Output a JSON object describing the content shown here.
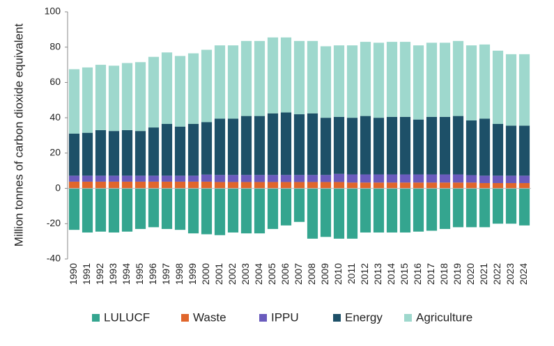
{
  "chart_data": {
    "type": "stacked-bar",
    "y_label": "Million tonnes of carbon dioxide equivalent",
    "categories": [
      "1990",
      "1991",
      "1992",
      "1993",
      "1994",
      "1995",
      "1996",
      "1997",
      "1998",
      "1999",
      "2000",
      "2001",
      "2002",
      "2003",
      "2004",
      "2005",
      "2006",
      "2007",
      "2008",
      "2009",
      "2010",
      "2011",
      "2012",
      "2013",
      "2014",
      "2015",
      "2016",
      "2017",
      "2018",
      "2019",
      "2020",
      "2021",
      "2022",
      "2023",
      "2024"
    ],
    "series": [
      {
        "name": "LULUCF",
        "color": "#34a58f",
        "values": [
          -23.5,
          -25,
          -24.5,
          -25,
          -24.5,
          -23,
          -22,
          -23,
          -23.5,
          -25.5,
          -26,
          -26.5,
          -25,
          -25.5,
          -25.5,
          -23,
          -21,
          -19,
          -28.5,
          -27.5,
          -28.5,
          -28.5,
          -25,
          -25,
          -25,
          -25,
          -24.5,
          -24,
          -23,
          -22,
          -22,
          -22,
          -20,
          -20,
          -21
        ]
      },
      {
        "name": "Waste",
        "color": "#e0662c",
        "values": [
          3.8,
          3.8,
          3.8,
          3.8,
          3.8,
          3.8,
          3.8,
          3.8,
          3.8,
          3.8,
          3.8,
          3.6,
          3.6,
          3.6,
          3.6,
          3.6,
          3.6,
          3.6,
          3.6,
          3.6,
          3.6,
          3.3,
          3.3,
          3.3,
          3.3,
          3.3,
          3.3,
          3.3,
          3.3,
          3.3,
          3.3,
          3.0,
          3.0,
          3.0,
          3.0
        ]
      },
      {
        "name": "IPPU",
        "color": "#6a5bbd",
        "values": [
          3.4,
          3.4,
          3.4,
          3.4,
          3.4,
          3.4,
          3.4,
          3.4,
          3.4,
          3.4,
          4.0,
          4.0,
          4.0,
          4.0,
          4.0,
          4.0,
          4.0,
          4.0,
          4.0,
          4.0,
          4.6,
          4.6,
          4.6,
          4.6,
          4.6,
          4.6,
          4.6,
          4.6,
          4.6,
          4.6,
          4.2,
          4.2,
          4.2,
          4.2,
          4.2
        ]
      },
      {
        "name": "Energy",
        "color": "#1d5068",
        "values": [
          23.8,
          24.3,
          25.8,
          25.3,
          25.8,
          25.3,
          27.3,
          29.3,
          27.8,
          29.3,
          29.7,
          31.9,
          31.9,
          33.4,
          33.4,
          34.9,
          35.4,
          34.4,
          34.9,
          32.4,
          32.3,
          32.1,
          33.1,
          32.1,
          32.6,
          32.6,
          31.1,
          32.6,
          32.6,
          33.1,
          31,
          32.3,
          29.3,
          28.3,
          28.3
        ]
      },
      {
        "name": "Agriculture",
        "color": "#9ed8cd",
        "values": [
          36.5,
          37,
          37,
          37,
          38,
          39,
          40,
          40.5,
          40,
          40,
          41,
          41.5,
          41.5,
          42.5,
          42.5,
          43,
          42.5,
          41.5,
          41,
          40.5,
          40.5,
          41,
          42,
          42.5,
          42.5,
          42.5,
          42,
          42,
          42,
          42.5,
          42.5,
          42,
          41.5,
          40.5,
          40.5
        ]
      }
    ],
    "ylim": [
      -40,
      100
    ],
    "yticks": [
      100,
      80,
      60,
      40,
      20,
      0,
      -20,
      -40
    ]
  }
}
